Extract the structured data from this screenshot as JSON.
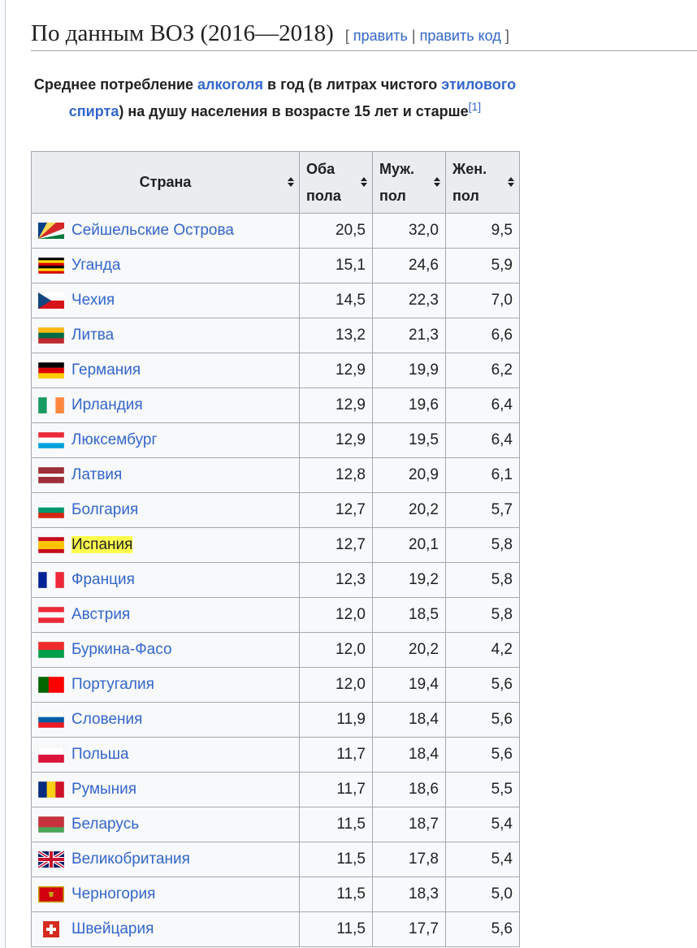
{
  "header": {
    "title": "По данным ВОЗ (2016—2018)",
    "edit_open": "[",
    "edit": "править",
    "edit_sep": "|",
    "edit_code": "править код",
    "edit_close": "]"
  },
  "caption": {
    "part1": "Среднее потребление ",
    "link1": "алкоголя",
    "part2": " в год (в литрах чистого ",
    "link2": "этилового спирта",
    "part3": ") на душу населения в возрасте 15 лет и старше",
    "ref": "[1]"
  },
  "table": {
    "headers": [
      "Страна",
      "Оба пола",
      "Муж. пол",
      "Жен. пол"
    ],
    "rows": [
      [
        "Сейшельские Острова",
        "20,5",
        "32,0",
        "9,5"
      ],
      [
        "Уганда",
        "15,1",
        "24,6",
        "5,9"
      ],
      [
        "Чехия",
        "14,5",
        "22,3",
        "7,0"
      ],
      [
        "Литва",
        "13,2",
        "21,3",
        "6,6"
      ],
      [
        "Германия",
        "12,9",
        "19,9",
        "6,2"
      ],
      [
        "Ирландия",
        "12,9",
        "19,6",
        "6,4"
      ],
      [
        "Люксембург",
        "12,9",
        "19,5",
        "6,4"
      ],
      [
        "Латвия",
        "12,8",
        "20,9",
        "6,1"
      ],
      [
        "Болгария",
        "12,7",
        "20,2",
        "5,7"
      ],
      [
        "Испания",
        "12,7",
        "20,1",
        "5,8"
      ],
      [
        "Франция",
        "12,3",
        "19,2",
        "5,8"
      ],
      [
        "Австрия",
        "12,0",
        "18,5",
        "5,8"
      ],
      [
        "Буркина-Фасо",
        "12,0",
        "20,2",
        "4,2"
      ],
      [
        "Португалия",
        "12,0",
        "19,4",
        "5,6"
      ],
      [
        "Словения",
        "11,9",
        "18,4",
        "5,6"
      ],
      [
        "Польша",
        "11,7",
        "18,4",
        "5,6"
      ],
      [
        "Румыния",
        "11,7",
        "18,6",
        "5,5"
      ],
      [
        "Беларусь",
        "11,5",
        "18,7",
        "5,4"
      ],
      [
        "Великобритания",
        "11,5",
        "17,8",
        "5,4"
      ],
      [
        "Черногория",
        "11,5",
        "18,3",
        "5,0"
      ],
      [
        "Швейцария",
        "11,5",
        "17,7",
        "5,6"
      ]
    ]
  }
}
